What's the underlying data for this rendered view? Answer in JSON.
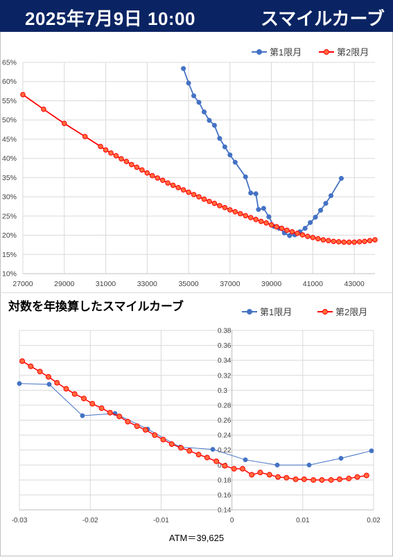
{
  "header": {
    "date": "2025年7月9日 10:00",
    "title": "スマイルカーブ"
  },
  "section2_title": "対数を年換算したスマイルカーブ",
  "atm_label": "ATM＝39,625",
  "colors": {
    "series1": "#4472c4",
    "series2": "#ff0000",
    "series2_fill": "#ff6a3d",
    "header_bg": "#0a2463"
  },
  "chart_data": [
    {
      "type": "line",
      "title": "",
      "xlabel": "",
      "ylabel": "",
      "xlim": [
        27000,
        44000
      ],
      "ylim": [
        10,
        65
      ],
      "yformat": "percent",
      "x_ticks": [
        "27000",
        "29000",
        "31000",
        "33000",
        "35000",
        "37000",
        "39000",
        "41000",
        "43000"
      ],
      "y_ticks": [
        "10%",
        "15%",
        "20%",
        "25%",
        "30%",
        "35%",
        "40%",
        "45%",
        "50%",
        "55%",
        "60%",
        "65%"
      ],
      "grid": true,
      "legend": "top-right",
      "series": [
        {
          "name": "第1限月",
          "points": [
            [
              34750,
              63.4
            ],
            [
              35000,
              59.6
            ],
            [
              35250,
              56.3
            ],
            [
              35500,
              54.6
            ],
            [
              35750,
              52.1
            ],
            [
              36000,
              49.9
            ],
            [
              36250,
              48.6
            ],
            [
              36500,
              45.2
            ],
            [
              36750,
              43.0
            ],
            [
              37000,
              40.9
            ],
            [
              37250,
              39.0
            ],
            [
              37750,
              35.2
            ],
            [
              38000,
              31.0
            ],
            [
              38250,
              30.8
            ],
            [
              38375,
              26.7
            ],
            [
              38625,
              27.0
            ],
            [
              38875,
              24.8
            ],
            [
              39125,
              22.3
            ],
            [
              39375,
              21.8
            ],
            [
              39625,
              20.6
            ],
            [
              39875,
              19.9
            ],
            [
              40125,
              20.1
            ],
            [
              40375,
              20.9
            ],
            [
              40625,
              21.8
            ],
            [
              40875,
              23.3
            ],
            [
              41125,
              24.7
            ],
            [
              41375,
              26.5
            ],
            [
              41625,
              28.3
            ],
            [
              41875,
              30.3
            ],
            [
              42375,
              34.8
            ]
          ]
        },
        {
          "name": "第2限月",
          "points": [
            [
              27000,
              56.6
            ],
            [
              28000,
              52.8
            ],
            [
              29000,
              49.1
            ],
            [
              30000,
              45.7
            ],
            [
              30750,
              43.1
            ],
            [
              31000,
              42.2
            ],
            [
              31250,
              41.4
            ],
            [
              31500,
              40.7
            ],
            [
              31750,
              39.9
            ],
            [
              32000,
              39.2
            ],
            [
              32250,
              38.4
            ],
            [
              32500,
              37.7
            ],
            [
              32750,
              37.0
            ],
            [
              33000,
              36.2
            ],
            [
              33250,
              35.5
            ],
            [
              33500,
              34.9
            ],
            [
              33750,
              34.3
            ],
            [
              34000,
              33.6
            ],
            [
              34250,
              33.0
            ],
            [
              34500,
              32.4
            ],
            [
              34750,
              31.8
            ],
            [
              35000,
              31.2
            ],
            [
              35250,
              30.6
            ],
            [
              35500,
              30.0
            ],
            [
              35750,
              29.4
            ],
            [
              36000,
              28.8
            ],
            [
              36250,
              28.3
            ],
            [
              36500,
              27.7
            ],
            [
              36750,
              27.2
            ],
            [
              37000,
              26.6
            ],
            [
              37250,
              26.1
            ],
            [
              37500,
              25.6
            ],
            [
              37750,
              25.1
            ],
            [
              38000,
              24.6
            ],
            [
              38250,
              24.1
            ],
            [
              38500,
              23.6
            ],
            [
              38750,
              23.2
            ],
            [
              39000,
              22.7
            ],
            [
              39250,
              22.2
            ],
            [
              39500,
              21.8
            ],
            [
              39750,
              21.3
            ],
            [
              40000,
              20.9
            ],
            [
              40250,
              20.5
            ],
            [
              40500,
              20.1
            ],
            [
              40750,
              19.7
            ],
            [
              41000,
              19.4
            ],
            [
              41250,
              19.1
            ],
            [
              41500,
              18.8
            ],
            [
              41750,
              18.6
            ],
            [
              42000,
              18.4
            ],
            [
              42250,
              18.3
            ],
            [
              42500,
              18.2
            ],
            [
              42750,
              18.2
            ],
            [
              43000,
              18.2
            ],
            [
              43250,
              18.3
            ],
            [
              43500,
              18.4
            ],
            [
              43750,
              18.6
            ],
            [
              44000,
              18.8
            ]
          ]
        }
      ]
    },
    {
      "type": "line",
      "title": "対数を年換算したスマイルカーブ",
      "xlabel": "ATM＝39,625",
      "ylabel": "",
      "xlim": [
        -0.03,
        0.02
      ],
      "ylim": [
        0.14,
        0.38
      ],
      "x_ticks": [
        "-0.03",
        "-0.02",
        "-0.01",
        "0",
        "0.01",
        "0.02"
      ],
      "y_ticks": [
        "0.14",
        "0.16",
        "0.18",
        "0.2",
        "0.22",
        "0.24",
        "0.26",
        "0.28",
        "0.3",
        "0.32",
        "0.34",
        "0.36",
        "0.38"
      ],
      "grid": true,
      "legend": "top-right",
      "series": [
        {
          "name": "第1限月",
          "points": [
            [
              -0.03,
              0.309
            ],
            [
              -0.0258,
              0.308
            ],
            [
              -0.0211,
              0.266
            ],
            [
              -0.0165,
              0.269
            ],
            [
              -0.0119,
              0.248
            ],
            [
              -0.0073,
              0.224
            ],
            [
              -0.0027,
              0.221
            ],
            [
              0.0019,
              0.207
            ],
            [
              0.0064,
              0.2
            ],
            [
              0.0109,
              0.2
            ],
            [
              0.0154,
              0.209
            ],
            [
              0.0197,
              0.219
            ]
          ]
        },
        {
          "name": "第2限月",
          "points": [
            [
              -0.0296,
              0.339
            ],
            [
              -0.0284,
              0.332
            ],
            [
              -0.0271,
              0.325
            ],
            [
              -0.0259,
              0.318
            ],
            [
              -0.0247,
              0.31
            ],
            [
              -0.0234,
              0.302
            ],
            [
              -0.0222,
              0.295
            ],
            [
              -0.0209,
              0.289
            ],
            [
              -0.0197,
              0.282
            ],
            [
              -0.0184,
              0.276
            ],
            [
              -0.0172,
              0.27
            ],
            [
              -0.0159,
              0.265
            ],
            [
              -0.0147,
              0.258
            ],
            [
              -0.0134,
              0.252
            ],
            [
              -0.0122,
              0.247
            ],
            [
              -0.0109,
              0.24
            ],
            [
              -0.0097,
              0.234
            ],
            [
              -0.0085,
              0.228
            ],
            [
              -0.0072,
              0.223
            ],
            [
              -0.006,
              0.219
            ],
            [
              -0.0047,
              0.214
            ],
            [
              -0.0035,
              0.21
            ],
            [
              -0.0022,
              0.205
            ],
            [
              -0.001,
              0.199
            ],
            [
              0.0003,
              0.195
            ],
            [
              0.0015,
              0.195
            ],
            [
              0.0028,
              0.187
            ],
            [
              0.004,
              0.19
            ],
            [
              0.0053,
              0.187
            ],
            [
              0.0065,
              0.184
            ],
            [
              0.0077,
              0.183
            ],
            [
              0.009,
              0.181
            ],
            [
              0.0102,
              0.181
            ],
            [
              0.0115,
              0.18
            ],
            [
              0.0127,
              0.18
            ],
            [
              0.014,
              0.18
            ],
            [
              0.0152,
              0.181
            ],
            [
              0.0165,
              0.182
            ],
            [
              0.0177,
              0.184
            ],
            [
              0.019,
              0.186
            ]
          ]
        }
      ]
    }
  ]
}
